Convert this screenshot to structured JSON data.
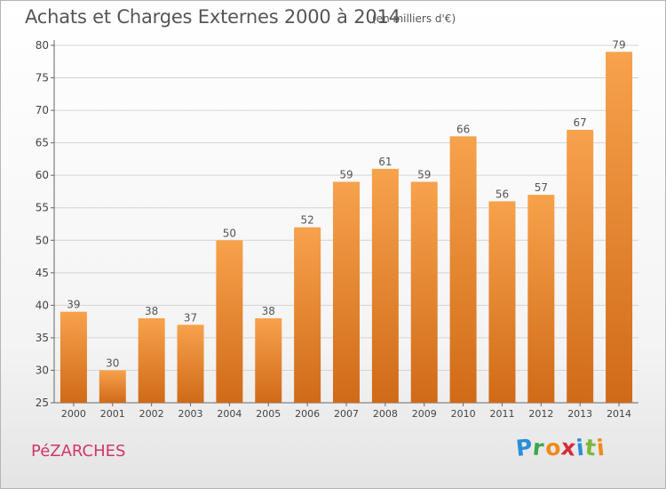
{
  "header": {
    "title": "Achats et Charges Externes 2000 à 2014",
    "subtitle": "(en milliers d'€)"
  },
  "footer": {
    "commune": "PéZARCHES",
    "brand_letters": [
      "P",
      "r",
      "o",
      "x",
      "i",
      "t",
      "i"
    ],
    "brand_colors": [
      "#2a8fd8",
      "#3aa84a",
      "#f08a1c",
      "#d8293a",
      "#2a8fd8",
      "#7ab83c",
      "#f08a1c"
    ]
  },
  "chart_data": {
    "type": "bar",
    "categories": [
      "2000",
      "2001",
      "2002",
      "2003",
      "2004",
      "2005",
      "2006",
      "2007",
      "2008",
      "2009",
      "2010",
      "2011",
      "2012",
      "2013",
      "2014"
    ],
    "values": [
      39,
      30,
      38,
      37,
      50,
      38,
      52,
      59,
      61,
      59,
      66,
      56,
      57,
      67,
      79
    ],
    "title": "Achats et Charges Externes 2000 à 2014",
    "xlabel": "",
    "ylabel": "",
    "ylim": [
      25,
      80
    ],
    "yticks": [
      25,
      30,
      35,
      40,
      45,
      50,
      55,
      60,
      65,
      70,
      75,
      80
    ],
    "grid": true,
    "bar_color_top": "#f7a24c",
    "bar_color_bottom": "#d06a18"
  }
}
